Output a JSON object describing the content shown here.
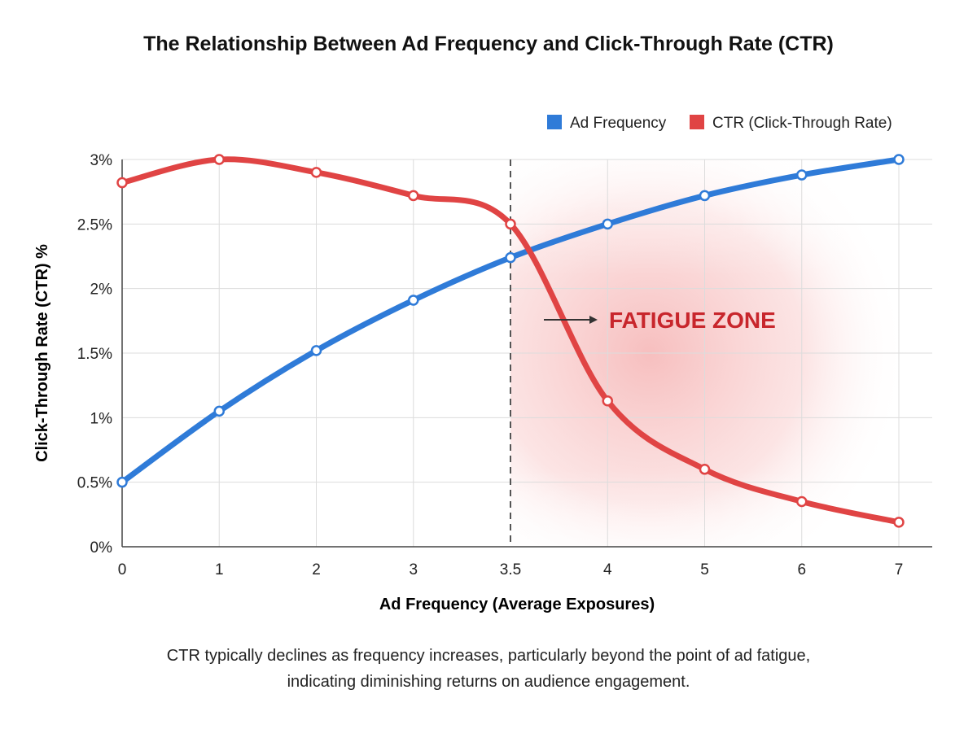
{
  "chart_data": {
    "type": "line",
    "title": "The Relationship Between Ad Frequency and Click-Through Rate (CTR)",
    "xlabel": "Ad Frequency (Average Exposures)",
    "ylabel": "Click-Through Rate (CTR) %",
    "categories": [
      "0",
      "1",
      "2",
      "3",
      "3.5",
      "4",
      "5",
      "6",
      "7"
    ],
    "x": [
      0,
      1,
      2,
      3,
      3.5,
      4,
      5,
      6,
      7
    ],
    "y_ticks": [
      "0%",
      "0.5%",
      "1%",
      "1.5%",
      "2%",
      "2.5%",
      "3%"
    ],
    "ylim": [
      0,
      3
    ],
    "grid": true,
    "legend_position": "top-right",
    "series": [
      {
        "name": "Ad Frequency",
        "color": "#2f7bd8",
        "values": [
          0.5,
          1.05,
          1.52,
          1.91,
          2.24,
          2.5,
          2.72,
          2.88,
          3.0
        ]
      },
      {
        "name": "CTR (Click-Through Rate)",
        "color": "#e04444",
        "values": [
          2.82,
          3.0,
          2.9,
          2.72,
          2.5,
          1.13,
          0.6,
          0.35,
          0.19
        ]
      }
    ],
    "annotations": [
      {
        "type": "vertical-dashed-line",
        "x": 3.5
      },
      {
        "type": "shaded-region",
        "x_start": 3.5,
        "label": "FATIGUE ZONE",
        "label_color": "#c8262c"
      }
    ]
  },
  "caption": "CTR typically declines as frequency increases, particularly beyond the point of ad fatigue, indicating diminishing returns on audience engagement."
}
